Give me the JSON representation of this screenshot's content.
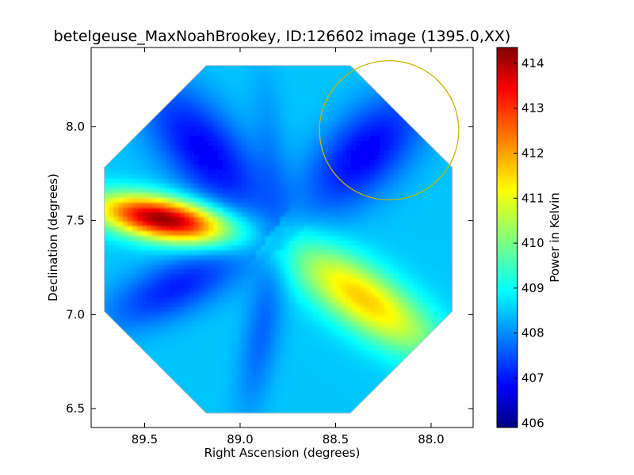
{
  "chart_data": {
    "type": "heatmap",
    "title": "betelgeuse_MaxNoahBrookey, ID:126602 image (1395.0,XX)",
    "xlabel": "Right Ascension (degrees)",
    "ylabel": "Declination (degrees)",
    "colorbar_label": "Power in Kelvin",
    "xlim": [
      89.78,
      87.78
    ],
    "ylim": [
      6.4,
      8.42
    ],
    "x_reversed": true,
    "x_ticks": [
      89.5,
      89.0,
      88.5,
      88.0
    ],
    "x_tick_labels": [
      "89.5",
      "89.0",
      "88.5",
      "88.0"
    ],
    "y_ticks": [
      6.5,
      7.0,
      7.5,
      8.0
    ],
    "y_tick_labels": [
      "6.5",
      "7.0",
      "7.5",
      "8.0"
    ],
    "colorbar_range": [
      405.9,
      414.35
    ],
    "colorbar_ticks": [
      406,
      407,
      408,
      409,
      410,
      411,
      412,
      413,
      414
    ],
    "colorbar_tick_labels": [
      "406",
      "407",
      "408",
      "409",
      "410",
      "411",
      "412",
      "413",
      "414"
    ],
    "colormap": "jet",
    "map_center": [
      88.8,
      7.4
    ],
    "map_radius_deg": 1.0,
    "background_level": 408.6,
    "features": [
      {
        "shape": "lobe",
        "angle_deg": 170,
        "peak": 414.2,
        "center_r": 0.62,
        "width": 0.11,
        "length": 0.35
      },
      {
        "shape": "lobe",
        "angle_deg": 325,
        "peak": 411.6,
        "center_r": 0.55,
        "width": 0.16,
        "length": 0.45
      },
      {
        "shape": "lobe",
        "angle_deg": 130,
        "peak": 406.9,
        "center_r": 0.6,
        "width": 0.2,
        "length": 0.45
      },
      {
        "shape": "lobe",
        "angle_deg": 45,
        "peak": 406.9,
        "center_r": 0.65,
        "width": 0.2,
        "length": 0.4
      },
      {
        "shape": "lobe",
        "angle_deg": 205,
        "peak": 407.2,
        "center_r": 0.6,
        "width": 0.15,
        "length": 0.4
      },
      {
        "shape": "lobe",
        "angle_deg": 260,
        "peak": 407.8,
        "center_r": 0.5,
        "width": 0.1,
        "length": 0.45
      },
      {
        "shape": "lobe",
        "angle_deg": 95,
        "peak": 408.2,
        "center_r": 0.5,
        "width": 0.09,
        "length": 0.45
      }
    ],
    "circle": {
      "ra": 88.22,
      "dec": 7.98,
      "radius_deg": 0.37,
      "color": "#c8b400"
    },
    "grid": false
  }
}
